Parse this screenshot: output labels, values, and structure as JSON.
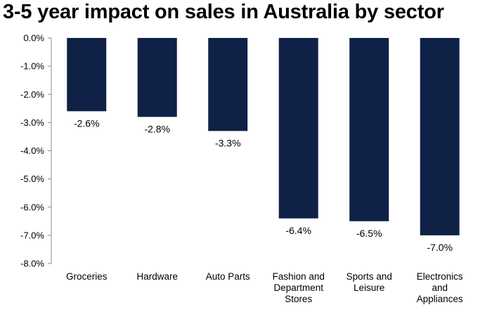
{
  "chart_data": {
    "type": "bar",
    "title": "3-5 year impact on sales in Australia by sector",
    "categories": [
      [
        "Groceries"
      ],
      [
        "Hardware"
      ],
      [
        "Auto Parts"
      ],
      [
        "Fashion and",
        "Department",
        "Stores"
      ],
      [
        "Sports and",
        "Leisure"
      ],
      [
        "Electronics",
        "and",
        "Appliances"
      ]
    ],
    "values": [
      -2.6,
      -2.8,
      -3.3,
      -6.4,
      -6.5,
      -7.0
    ],
    "data_labels": [
      "-2.6%",
      "-2.8%",
      "-3.3%",
      "-6.4%",
      "-6.5%",
      "-7.0%"
    ],
    "ylim": [
      -8.0,
      0.0
    ],
    "yticks": [
      0,
      -1,
      -2,
      -3,
      -4,
      -5,
      -6,
      -7,
      -8
    ],
    "ytick_labels": [
      "0.0%",
      "-1.0%",
      "-2.0%",
      "-3.0%",
      "-4.0%",
      "-5.0%",
      "-6.0%",
      "-7.0%",
      "-8.0%"
    ],
    "bar_color": "#0f2147",
    "grid": false,
    "legend": "none"
  }
}
